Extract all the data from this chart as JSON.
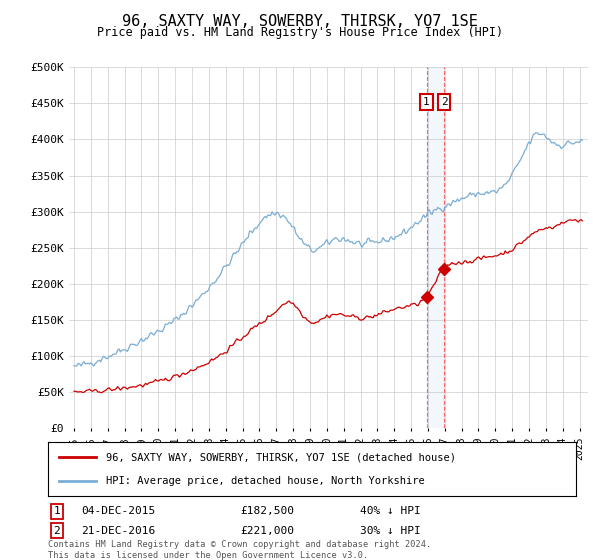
{
  "title": "96, SAXTY WAY, SOWERBY, THIRSK, YO7 1SE",
  "subtitle": "Price paid vs. HM Land Registry's House Price Index (HPI)",
  "ylabel_ticks": [
    "£0",
    "£50K",
    "£100K",
    "£150K",
    "£200K",
    "£250K",
    "£300K",
    "£350K",
    "£400K",
    "£450K",
    "£500K"
  ],
  "ylim": [
    0,
    500000
  ],
  "xlim_start": 1994.7,
  "xlim_end": 2025.5,
  "legend_line1": "96, SAXTY WAY, SOWERBY, THIRSK, YO7 1SE (detached house)",
  "legend_line2": "HPI: Average price, detached house, North Yorkshire",
  "purchase1_date": "04-DEC-2015",
  "purchase1_price": 182500,
  "purchase1_x": 2015.92,
  "purchase2_date": "21-DEC-2016",
  "purchase2_price": 221000,
  "purchase2_x": 2016.97,
  "footnote": "Contains HM Land Registry data © Crown copyright and database right 2024.\nThis data is licensed under the Open Government Licence v3.0.",
  "hpi_color": "#7aadd4",
  "price_color": "#cc0000",
  "dashed_color": "#ff6666",
  "background_color": "#ffffff",
  "grid_color": "#cccccc"
}
